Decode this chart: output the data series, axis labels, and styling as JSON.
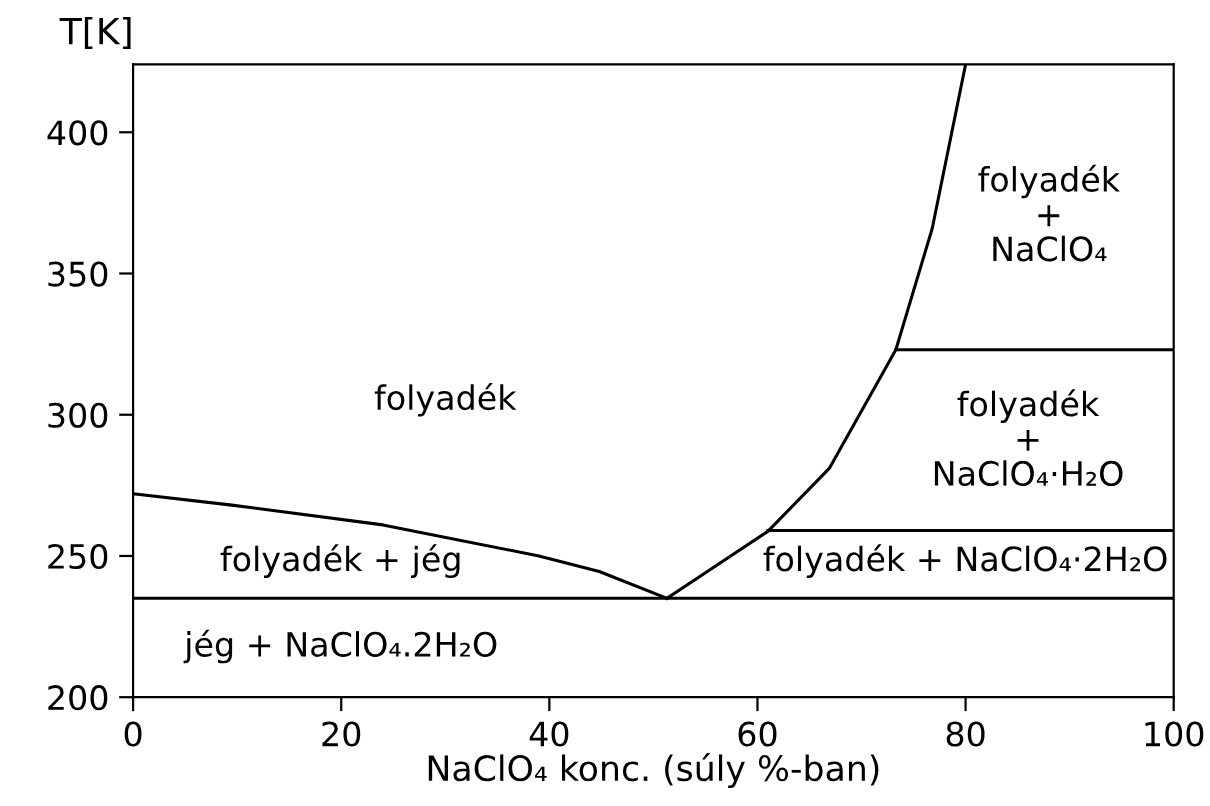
{
  "chart_data": {
    "type": "line",
    "xlabel": "NaClO₄ konc. (súly %-ban)",
    "ylabel": "T[K]",
    "xlim": [
      0,
      100
    ],
    "xticks": [
      0,
      20,
      40,
      60,
      80,
      100
    ],
    "ylim": [
      200,
      424
    ],
    "yticks": [
      200,
      250,
      300,
      350,
      400
    ],
    "grid": false,
    "legend": false,
    "marker": "none",
    "line_style": "solid",
    "series": [
      {
        "color": "#000000",
        "x": [
          0,
          9.5,
          24,
          39,
          44.8,
          51.3
        ],
        "values": [
          272,
          268,
          261,
          250,
          244.5,
          235
        ]
      },
      {
        "color": "#000000",
        "x": [
          51.3,
          55.8,
          61,
          66.9,
          73.3,
          76.8,
          80
        ],
        "values": [
          235,
          246,
          258.7,
          281,
          323,
          366,
          424
        ]
      },
      {
        "color": "#000000",
        "x": [
          61,
          100
        ],
        "values": [
          259,
          259
        ]
      },
      {
        "color": "#000000",
        "x": [
          73.3,
          100
        ],
        "values": [
          323,
          323
        ]
      }
    ],
    "ref_lines": [
      {
        "axis": "y",
        "value": 235,
        "color": "#000000"
      }
    ],
    "annotations": [
      "folyadék",
      "folyadék + jég",
      "jég + NaClO₄.2H₂O",
      "folyadék + NaClO₄·2H₂O",
      "folyadék\n+\nNaClO₄·H₂O",
      "folyadék\n+\nNaClO₄"
    ]
  }
}
